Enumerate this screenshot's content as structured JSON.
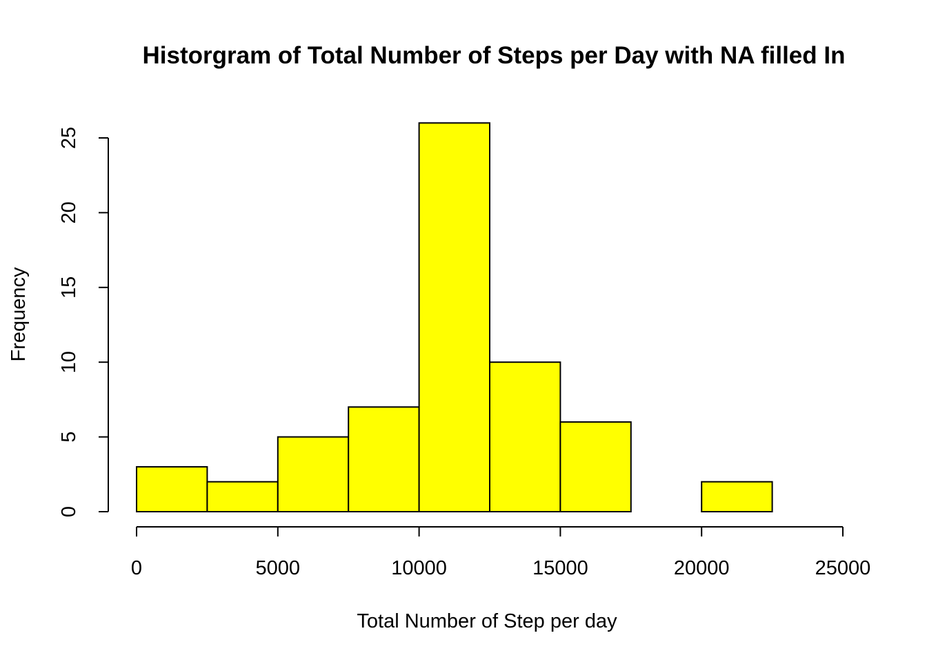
{
  "chart_data": {
    "type": "bar",
    "subtype": "histogram",
    "title": "Historgram of Total Number of Steps per Day with NA filled In",
    "xlabel": "Total Number of Step per day",
    "ylabel": "Frequency",
    "bins": [
      {
        "start": 0,
        "end": 2500,
        "count": 3
      },
      {
        "start": 2500,
        "end": 5000,
        "count": 2
      },
      {
        "start": 5000,
        "end": 7500,
        "count": 5
      },
      {
        "start": 7500,
        "end": 10000,
        "count": 7
      },
      {
        "start": 10000,
        "end": 12500,
        "count": 26
      },
      {
        "start": 12500,
        "end": 15000,
        "count": 10
      },
      {
        "start": 15000,
        "end": 17500,
        "count": 6
      },
      {
        "start": 17500,
        "end": 20000,
        "count": 0
      },
      {
        "start": 20000,
        "end": 22500,
        "count": 2
      },
      {
        "start": 22500,
        "end": 25000,
        "count": 0
      }
    ],
    "x_ticks": [
      "0",
      "5000",
      "10000",
      "15000",
      "20000",
      "25000"
    ],
    "y_ticks": [
      "0",
      "5",
      "10",
      "15",
      "20",
      "25"
    ],
    "xlim": [
      0,
      25000
    ],
    "ylim": [
      0,
      25
    ],
    "bar_color": "#ffff00",
    "grid": false,
    "legend": "none"
  }
}
